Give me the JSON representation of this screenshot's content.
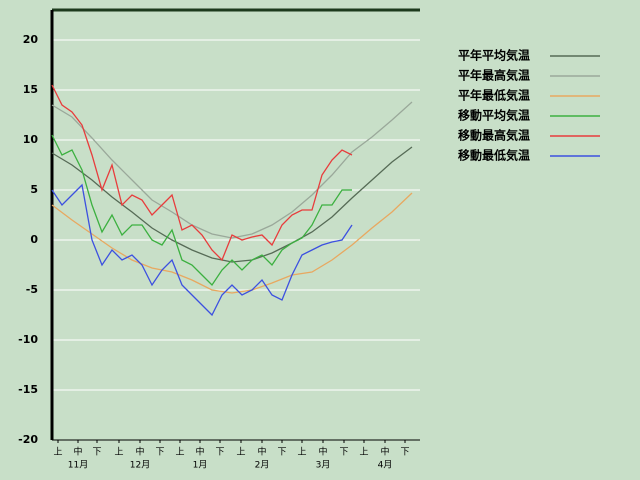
{
  "chart_data": {
    "type": "line",
    "background": "#c8dfc8",
    "grid": true,
    "grid_color": "#ffffff",
    "xlim": [
      0,
      184
    ],
    "ylim": [
      -20,
      23
    ],
    "yticks": [
      -20,
      -15,
      -10,
      -5,
      0,
      5,
      10,
      15,
      20
    ],
    "xticks": [
      {
        "value": 3,
        "label": "上"
      },
      {
        "value": 13,
        "label": "中"
      },
      {
        "value": 22.5,
        "label": "下"
      },
      {
        "value": 33.5,
        "label": "上"
      },
      {
        "value": 44,
        "label": "中"
      },
      {
        "value": 54,
        "label": "下"
      },
      {
        "value": 64,
        "label": "上"
      },
      {
        "value": 74,
        "label": "中"
      },
      {
        "value": 84,
        "label": "下"
      },
      {
        "value": 94.5,
        "label": "上"
      },
      {
        "value": 105,
        "label": "中"
      },
      {
        "value": 115,
        "label": "下"
      },
      {
        "value": 125,
        "label": "上"
      },
      {
        "value": 135.5,
        "label": "中"
      },
      {
        "value": 146,
        "label": "下"
      },
      {
        "value": 156,
        "label": "上"
      },
      {
        "value": 166.5,
        "label": "中"
      },
      {
        "value": 176.5,
        "label": "下"
      }
    ],
    "month_labels": [
      "11月",
      "12月",
      "1月",
      "2月",
      "3月",
      "4月"
    ],
    "series": [
      {
        "name": "平年平均気温",
        "color": "#566b56",
        "x": [
          0,
          10,
          20,
          30,
          40,
          50,
          60,
          70,
          80,
          90,
          100,
          110,
          120,
          130,
          140,
          150,
          160,
          170,
          180
        ],
        "values": [
          8.7,
          7.5,
          6.0,
          4.3,
          2.8,
          1.2,
          0.0,
          -1.0,
          -1.8,
          -2.2,
          -2.0,
          -1.3,
          -0.3,
          0.8,
          2.3,
          4.2,
          6.0,
          7.8,
          9.3
        ]
      },
      {
        "name": "平年最高気温",
        "color": "#9aa89a",
        "x": [
          0,
          10,
          20,
          30,
          40,
          50,
          60,
          70,
          80,
          90,
          100,
          110,
          120,
          130,
          140,
          150,
          160,
          170,
          180
        ],
        "values": [
          13.5,
          12.3,
          10.2,
          8.0,
          6.0,
          4.0,
          2.8,
          1.5,
          0.6,
          0.2,
          0.6,
          1.5,
          2.8,
          4.5,
          6.5,
          8.8,
          10.3,
          12.0,
          13.8
        ]
      },
      {
        "name": "平年最低気温",
        "color": "#e8a860",
        "x": [
          0,
          10,
          20,
          30,
          40,
          50,
          60,
          70,
          80,
          90,
          100,
          110,
          120,
          130,
          140,
          150,
          160,
          170,
          180
        ],
        "values": [
          3.5,
          2.0,
          0.6,
          -0.8,
          -2.0,
          -2.8,
          -3.2,
          -4.0,
          -5.0,
          -5.3,
          -5.0,
          -4.3,
          -3.5,
          -3.2,
          -2.0,
          -0.5,
          1.2,
          2.8,
          4.7
        ]
      },
      {
        "name": "移動平均気温",
        "color": "#3cb040",
        "x": [
          0,
          5,
          10,
          15,
          20,
          25,
          30,
          35,
          40,
          45,
          50,
          55,
          60,
          65,
          70,
          75,
          80,
          85,
          90,
          95,
          100,
          105,
          110,
          115,
          120,
          125,
          130,
          135,
          140,
          145,
          150
        ],
        "values": [
          10.5,
          8.5,
          9.0,
          7.0,
          3.5,
          0.8,
          2.5,
          0.5,
          1.5,
          1.5,
          0.0,
          -0.5,
          1.0,
          -2.0,
          -2.5,
          -3.5,
          -4.5,
          -3.0,
          -2.0,
          -3.0,
          -2.0,
          -1.5,
          -2.5,
          -1.0,
          -0.3,
          0.2,
          1.5,
          3.5,
          3.5,
          5.0,
          5.0
        ]
      },
      {
        "name": "移動最高気温",
        "color": "#e83c3c",
        "x": [
          0,
          5,
          10,
          15,
          20,
          25,
          30,
          35,
          40,
          45,
          50,
          55,
          60,
          65,
          70,
          75,
          80,
          85,
          90,
          95,
          100,
          105,
          110,
          115,
          120,
          125,
          130,
          135,
          140,
          145,
          150
        ],
        "values": [
          15.5,
          13.5,
          12.8,
          11.5,
          8.5,
          5.0,
          7.5,
          3.5,
          4.5,
          4.0,
          2.5,
          3.5,
          4.5,
          1.0,
          1.5,
          0.5,
          -1.0,
          -2.0,
          0.5,
          0.0,
          0.3,
          0.5,
          -0.5,
          1.5,
          2.5,
          3.0,
          3.0,
          6.5,
          8.0,
          9.0,
          8.5
        ]
      },
      {
        "name": "移動最低気温",
        "color": "#3c50e0",
        "x": [
          0,
          5,
          10,
          15,
          20,
          25,
          30,
          35,
          40,
          45,
          50,
          55,
          60,
          65,
          70,
          75,
          80,
          85,
          90,
          95,
          100,
          105,
          110,
          115,
          120,
          125,
          130,
          135,
          140,
          145,
          150
        ],
        "values": [
          5.0,
          3.5,
          4.5,
          5.5,
          0.0,
          -2.5,
          -1.0,
          -2.0,
          -1.5,
          -2.5,
          -4.5,
          -3.0,
          -2.0,
          -4.5,
          -5.5,
          -6.5,
          -7.5,
          -5.5,
          -4.5,
          -5.5,
          -5.0,
          -4.0,
          -5.5,
          -6.0,
          -3.5,
          -1.5,
          -1.0,
          -0.5,
          -0.2,
          0.0,
          1.5
        ]
      }
    ]
  }
}
